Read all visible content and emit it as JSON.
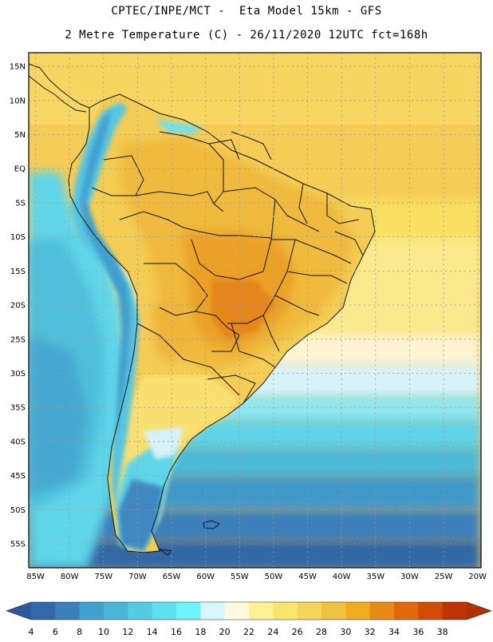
{
  "header": {
    "line1": "CPTEC/INPE/MCT -  Eta Model 15km - GFS",
    "line2": "2 Metre Temperature (C) - 26/11/2020 12UTC fct=168h"
  },
  "map": {
    "lat_labels": [
      "15N",
      "10N",
      "5N",
      "EQ",
      "5S",
      "10S",
      "15S",
      "20S",
      "25S",
      "30S",
      "35S",
      "40S",
      "45S",
      "50S",
      "55S"
    ],
    "lat_values": [
      15,
      10,
      5,
      0,
      -5,
      -10,
      -15,
      -20,
      -25,
      -30,
      -35,
      -40,
      -45,
      -50,
      -55
    ],
    "lon_labels": [
      "85W",
      "80W",
      "75W",
      "70W",
      "65W",
      "60W",
      "55W",
      "50W",
      "45W",
      "40W",
      "35W",
      "30W",
      "25W",
      "20W"
    ],
    "lon_values": [
      -85,
      -80,
      -75,
      -70,
      -65,
      -60,
      -55,
      -50,
      -45,
      -40,
      -35,
      -30,
      -25,
      -20
    ],
    "extent": {
      "lon_min": -86,
      "lon_max": -19.5,
      "lat_min": -58.5,
      "lat_max": 17
    }
  },
  "legend": {
    "labels": [
      "4",
      "6",
      "8",
      "10",
      "12",
      "14",
      "16",
      "18",
      "20",
      "22",
      "24",
      "26",
      "28",
      "30",
      "32",
      "34",
      "36",
      "38"
    ],
    "colors": [
      "#3268a8",
      "#3a80bb",
      "#42a0cc",
      "#4bb6d8",
      "#54cbe3",
      "#5fe0ee",
      "#6ff5f9",
      "#d6f7fb",
      "#fff9e0",
      "#fdf196",
      "#f9e46e",
      "#f4d45a",
      "#efc240",
      "#efac1e",
      "#e88a16",
      "#e2680e",
      "#d24c08",
      "#bd3504"
    ],
    "low_color": "#2b5a9a",
    "high_color": "#b03000"
  },
  "colors": {
    "land_border": "#111111",
    "grid": "#9a9a9a"
  }
}
